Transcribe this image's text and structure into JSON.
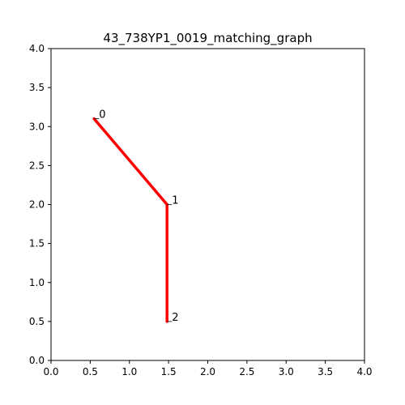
{
  "chart_data": {
    "type": "line",
    "title": "43_738YP1_0019_matching_graph",
    "xlabel": "",
    "ylabel": "",
    "xlim": [
      0.0,
      4.0
    ],
    "ylim": [
      0.0,
      4.0
    ],
    "grid": false,
    "x_ticks": [
      "0.0",
      "0.5",
      "1.0",
      "1.5",
      "2.0",
      "2.5",
      "3.0",
      "3.5",
      "4.0"
    ],
    "y_ticks": [
      "0.0",
      "0.5",
      "1.0",
      "1.5",
      "2.0",
      "2.5",
      "3.0",
      "3.5",
      "4.0"
    ],
    "nodes": [
      {
        "label": "0",
        "x": 0.55,
        "y": 3.1
      },
      {
        "label": "1",
        "x": 1.48,
        "y": 2.0
      },
      {
        "label": "2",
        "x": 1.48,
        "y": 0.5
      }
    ],
    "edges": [
      [
        0,
        1
      ],
      [
        1,
        2
      ]
    ],
    "line_color": "#ff0000"
  }
}
